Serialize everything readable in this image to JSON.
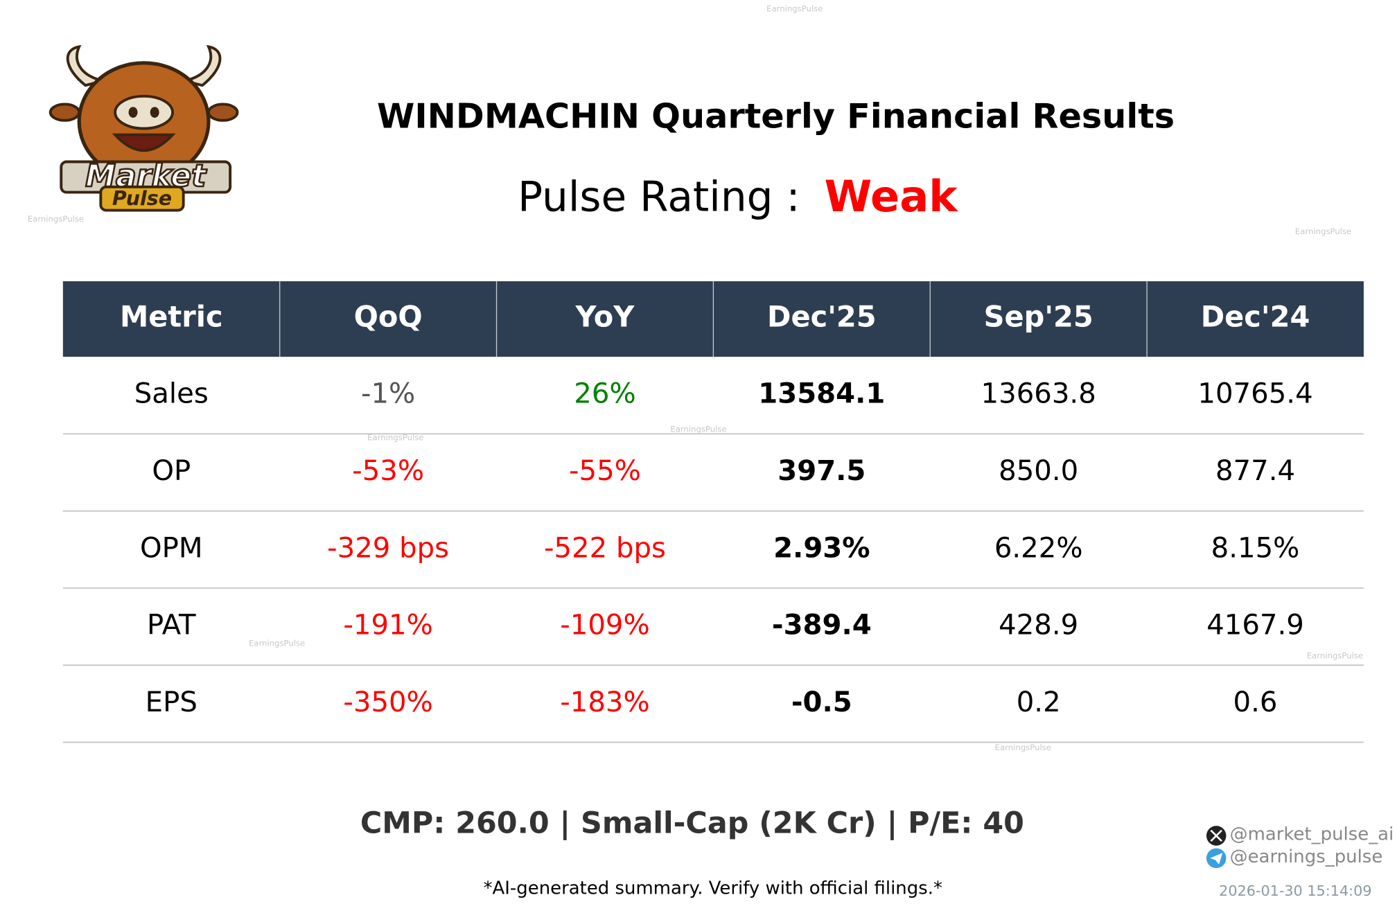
{
  "logo": {
    "line1": "Market",
    "line2": "Pulse"
  },
  "header": {
    "title": "WINDMACHIN Quarterly Financial Results",
    "rating_label": "Pulse Rating :",
    "rating_value": "Weak",
    "rating_color": "#ff0000"
  },
  "table": {
    "columns": [
      "Metric",
      "QoQ",
      "YoY",
      "Dec'25",
      "Sep'25",
      "Dec'24"
    ],
    "rows": [
      [
        "Sales",
        "-1%",
        "26%",
        "13584.1",
        "13663.8",
        "10765.4"
      ],
      [
        "OP",
        "-53%",
        "-55%",
        "397.5",
        "850.0",
        "877.4"
      ],
      [
        "OPM",
        "-329 bps",
        "-522 bps",
        "2.93%",
        "6.22%",
        "8.15%"
      ],
      [
        "PAT",
        "-191%",
        "-109%",
        "-389.4",
        "428.9",
        "4167.9"
      ],
      [
        "EPS",
        "-350%",
        "-183%",
        "-0.5",
        "0.2",
        "0.6"
      ]
    ],
    "cell_colors": [
      [
        "#000000",
        "#555555",
        "#008000",
        "#000000",
        "#000000",
        "#000000"
      ],
      [
        "#000000",
        "#ff0000",
        "#ff0000",
        "#000000",
        "#000000",
        "#000000"
      ],
      [
        "#000000",
        "#ff0000",
        "#ff0000",
        "#000000",
        "#000000",
        "#000000"
      ],
      [
        "#000000",
        "#ff0000",
        "#ff0000",
        "#000000",
        "#000000",
        "#000000"
      ],
      [
        "#000000",
        "#ff0000",
        "#ff0000",
        "#000000",
        "#000000",
        "#000000"
      ]
    ]
  },
  "footer": {
    "summary": "CMP: 260.0 | Small-Cap (2K Cr) | P/E: 40",
    "disclaimer": "*AI-generated summary. Verify with official filings.*",
    "twitter": "@market_pulse_ai",
    "telegram": "@earnings_pulse",
    "timestamp": "2026-01-30 15:14:09"
  },
  "watermarks": [
    "EarningsPulse",
    "EarningsPulse",
    "EarningsPulse",
    "EarningsPulse",
    "EarningsPulse",
    "EarningsPulse",
    "EarningsPulse",
    "EarningsPulse"
  ]
}
